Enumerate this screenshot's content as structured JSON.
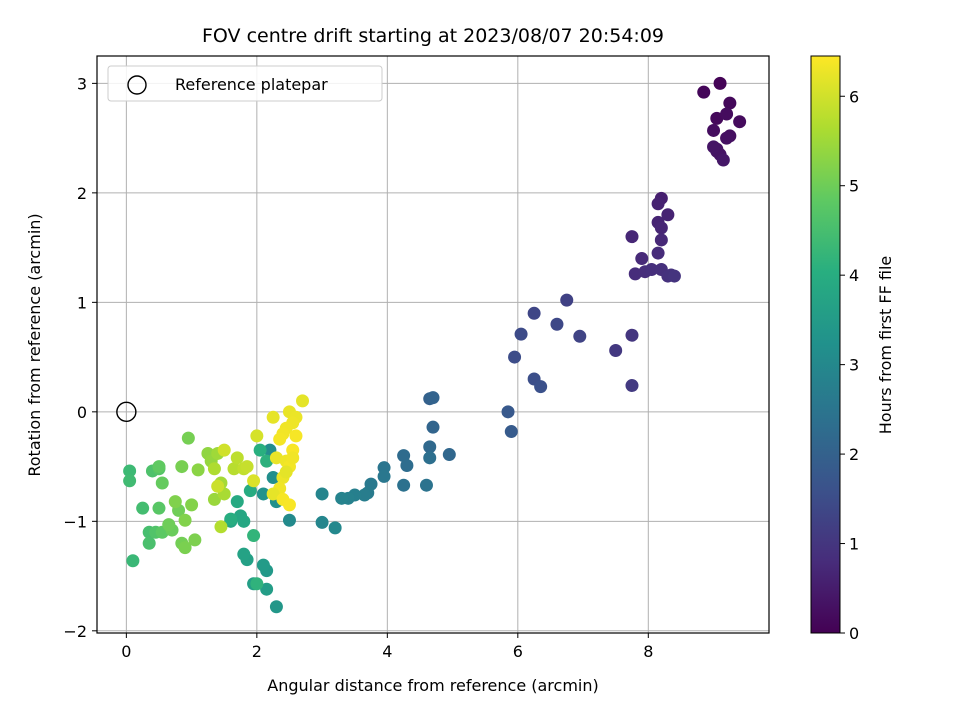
{
  "chart_data": {
    "type": "scatter",
    "title": "FOV centre drift starting at 2023/08/07 20:54:09",
    "xlabel": "Angular distance from reference (arcmin)",
    "ylabel": "Rotation from reference (arcmin)",
    "xlim": [
      -0.45,
      9.85
    ],
    "ylim": [
      -2.02,
      3.25
    ],
    "xticks": [
      0,
      2,
      4,
      6,
      8
    ],
    "yticks": [
      -2,
      -1,
      0,
      1,
      2,
      3
    ],
    "grid": true,
    "legend": {
      "placement": "top-left",
      "entries": [
        {
          "label": "Reference platepar",
          "marker": "hollow circle"
        }
      ]
    },
    "reference_point": {
      "x": 0,
      "y": 0
    },
    "colorbar": {
      "label": "Hours from first FF file",
      "colormap": "viridis",
      "range": [
        0,
        6.45
      ],
      "ticks": [
        0,
        1,
        2,
        3,
        4,
        5,
        6
      ]
    },
    "series": [
      {
        "x": [
          9.1,
          8.85,
          9.25,
          9.05,
          9.4,
          9.2,
          9.0,
          9.25,
          9.2,
          9.05,
          9.1,
          9.05,
          9.0,
          9.15
        ],
        "y": [
          3.0,
          2.92,
          2.82,
          2.68,
          2.65,
          2.72,
          2.57,
          2.52,
          2.5,
          2.4,
          2.35,
          2.38,
          2.42,
          2.3
        ],
        "c": [
          0.05,
          0.1,
          0.12,
          0.15,
          0.18,
          0.2,
          0.22,
          0.25,
          0.28,
          0.3,
          0.32,
          0.34,
          0.36,
          0.4
        ]
      },
      {
        "x": [
          8.2,
          8.15,
          8.3,
          8.15,
          8.2,
          7.75,
          8.2,
          7.9,
          8.15,
          7.8,
          7.95,
          8.05,
          8.2,
          8.3,
          8.35,
          8.4
        ],
        "y": [
          1.95,
          1.9,
          1.8,
          1.73,
          1.68,
          1.6,
          1.57,
          1.4,
          1.45,
          1.26,
          1.28,
          1.3,
          1.3,
          1.24,
          1.25,
          1.24
        ],
        "c": [
          0.55,
          0.6,
          0.62,
          0.65,
          0.68,
          0.7,
          0.72,
          0.75,
          0.78,
          0.8,
          0.82,
          0.85,
          0.88,
          0.9,
          0.92,
          0.95
        ]
      },
      {
        "x": [
          7.75,
          7.5,
          7.75,
          6.75,
          6.95,
          6.25,
          6.6,
          6.05,
          5.95,
          6.25,
          6.35
        ],
        "y": [
          0.7,
          0.56,
          0.24,
          1.02,
          0.69,
          0.9,
          0.8,
          0.71,
          0.5,
          0.3,
          0.23
        ],
        "c": [
          1.0,
          1.05,
          1.1,
          1.25,
          1.3,
          1.35,
          1.4,
          1.45,
          1.5,
          1.55,
          1.6
        ]
      },
      {
        "x": [
          5.85,
          5.9,
          4.65,
          4.7,
          4.7,
          4.95,
          4.65,
          4.25,
          4.3,
          4.65,
          4.25,
          4.6
        ],
        "y": [
          0.0,
          -0.18,
          0.12,
          0.13,
          -0.14,
          -0.39,
          -0.32,
          -0.4,
          -0.49,
          -0.42,
          -0.67,
          -0.67
        ],
        "c": [
          1.8,
          1.85,
          2.0,
          2.05,
          2.1,
          2.15,
          2.2,
          2.25,
          2.3,
          2.35,
          2.4,
          2.45
        ]
      },
      {
        "x": [
          3.95,
          3.95,
          3.75,
          3.7,
          3.65,
          3.5,
          3.4,
          3.3,
          3.0,
          3.0,
          3.2,
          2.5,
          2.2,
          2.25,
          2.3,
          2.1
        ],
        "y": [
          -0.51,
          -0.59,
          -0.66,
          -0.74,
          -0.76,
          -0.76,
          -0.79,
          -0.79,
          -0.75,
          -1.01,
          -1.06,
          -0.99,
          -0.35,
          -0.6,
          -0.82,
          -0.75
        ],
        "c": [
          2.5,
          2.55,
          2.6,
          2.65,
          2.7,
          2.75,
          2.8,
          2.85,
          2.9,
          2.95,
          3.0,
          3.05,
          3.1,
          3.15,
          3.2,
          3.25
        ]
      },
      {
        "x": [
          2.3,
          2.15,
          2.1,
          2.15,
          1.95,
          1.85,
          1.8,
          1.6,
          1.75,
          1.8,
          1.7,
          1.9,
          1.6,
          2.05,
          2.15,
          2.0,
          1.95
        ],
        "y": [
          -1.78,
          -1.45,
          -1.4,
          -1.62,
          -1.57,
          -1.35,
          -1.3,
          -1.0,
          -0.95,
          -1.0,
          -0.82,
          -0.72,
          -0.98,
          -0.35,
          -0.45,
          -1.57,
          -1.13
        ],
        "c": [
          3.4,
          3.45,
          3.5,
          3.55,
          3.6,
          3.65,
          3.7,
          3.75,
          3.8,
          3.85,
          3.9,
          3.95,
          4.0,
          4.05,
          4.1,
          4.15,
          4.2
        ]
      },
      {
        "x": [
          0.1,
          0.05,
          0.05,
          0.25,
          0.35,
          0.35,
          0.4,
          0.45,
          0.5,
          0.5,
          0.55,
          0.5,
          0.55,
          0.7,
          0.65,
          0.8,
          0.85,
          0.95,
          0.85,
          0.9,
          1.05,
          0.75,
          0.9,
          1.0
        ],
        "y": [
          -1.36,
          -0.54,
          -0.63,
          -0.88,
          -1.1,
          -1.2,
          -0.54,
          -1.1,
          -0.52,
          -0.88,
          -1.1,
          -0.5,
          -0.65,
          -1.08,
          -1.03,
          -0.9,
          -1.2,
          -0.24,
          -0.5,
          -1.24,
          -1.17,
          -0.82,
          -0.99,
          -0.85
        ],
        "c": [
          4.3,
          4.35,
          4.4,
          4.45,
          4.5,
          4.55,
          4.6,
          4.65,
          4.7,
          4.75,
          4.8,
          4.85,
          4.9,
          4.95,
          5.0,
          5.02,
          5.05,
          5.08,
          5.1,
          5.12,
          5.15,
          5.18,
          5.2,
          5.22
        ]
      },
      {
        "x": [
          1.1,
          1.25,
          1.3,
          1.35,
          1.4,
          1.45,
          1.5,
          1.35,
          1.45,
          1.65,
          1.7,
          1.8,
          1.85,
          1.4,
          1.5,
          2.0,
          1.95
        ],
        "y": [
          -0.53,
          -0.38,
          -0.45,
          -0.8,
          -0.38,
          -0.65,
          -0.75,
          -0.52,
          -1.05,
          -0.52,
          -0.42,
          -0.52,
          -0.5,
          -0.68,
          -0.35,
          -0.22,
          -0.63
        ],
        "c": [
          5.3,
          5.35,
          5.4,
          5.45,
          5.5,
          5.55,
          5.6,
          5.65,
          5.7,
          5.75,
          5.8,
          5.85,
          5.9,
          5.95,
          6.0,
          6.05,
          6.1
        ]
      },
      {
        "x": [
          2.7,
          2.25,
          2.5,
          2.6,
          2.55,
          2.45,
          2.4,
          2.35,
          2.6,
          2.55,
          2.3,
          2.45,
          2.5,
          2.4,
          2.35,
          2.25,
          2.4,
          2.5,
          2.45,
          2.55
        ],
        "y": [
          0.1,
          -0.05,
          0.0,
          -0.05,
          -0.1,
          -0.15,
          -0.2,
          -0.25,
          -0.22,
          -0.35,
          -0.42,
          -0.45,
          -0.5,
          -0.6,
          -0.7,
          -0.75,
          -0.8,
          -0.85,
          -0.55,
          -0.42
        ],
        "c": [
          6.2,
          6.22,
          6.25,
          6.27,
          6.3,
          6.32,
          6.34,
          6.36,
          6.38,
          6.4,
          6.25,
          6.3,
          6.35,
          6.28,
          6.32,
          6.22,
          6.38,
          6.4,
          6.2,
          6.33
        ]
      }
    ]
  }
}
